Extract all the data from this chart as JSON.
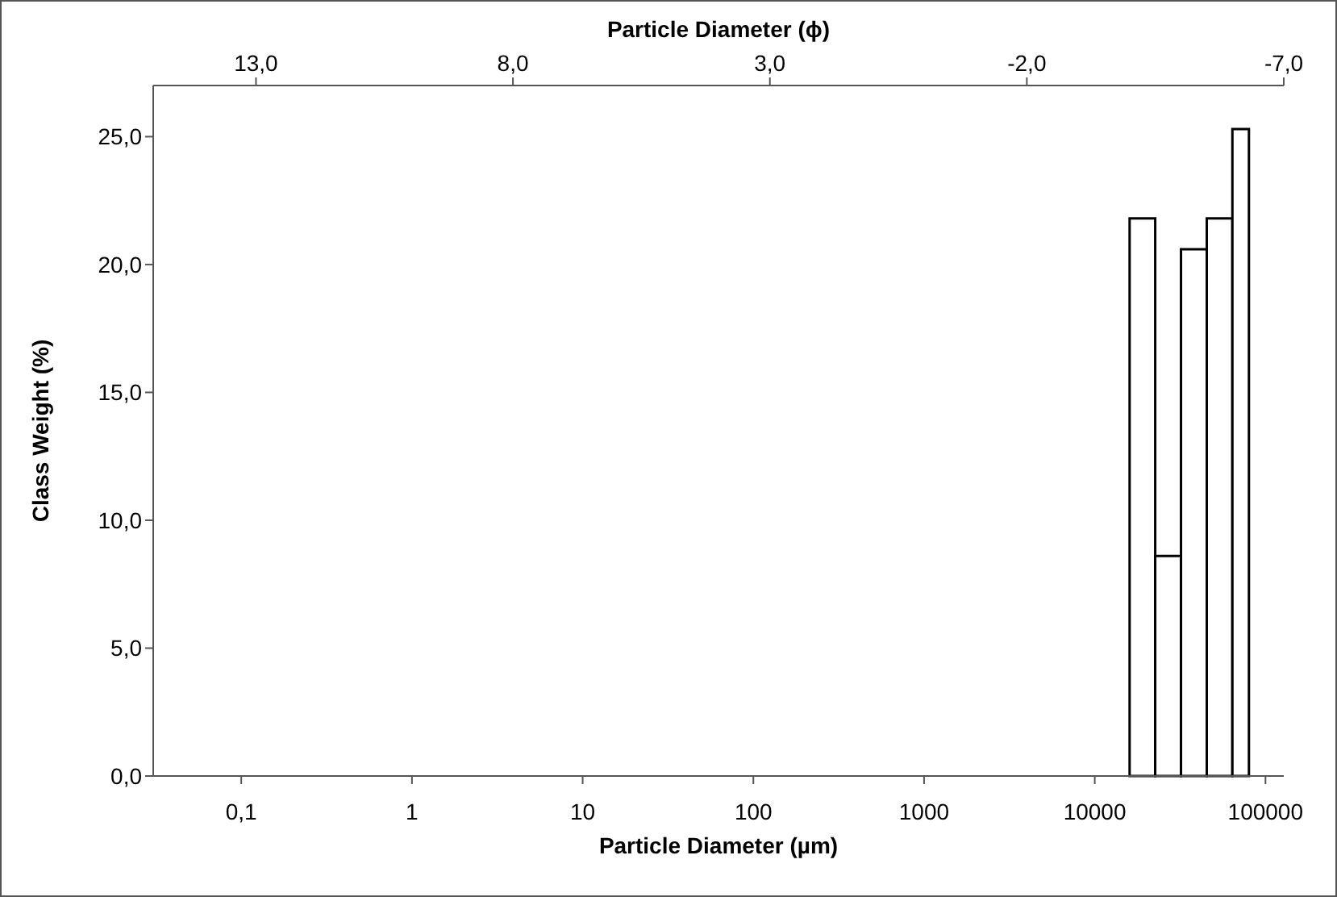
{
  "chart_data": {
    "type": "histogram",
    "xlabel": "Particle Diameter (µm)",
    "ylabel": "Class Weight (%)",
    "x2label": "Particle Diameter (ϕ)",
    "bins": [
      16000,
      22600,
      32000,
      45300,
      64000,
      80000
    ],
    "values": [
      21.8,
      8.6,
      20.6,
      21.8,
      25.3
    ],
    "color": "#ffffff",
    "log": "x",
    "xlim": [
      0.0305,
      128000
    ],
    "xticks": [
      {
        "value": 0.1,
        "label": "0,1"
      },
      1,
      10,
      100,
      1000,
      10000,
      100000
    ],
    "x2lim": [
      15,
      -7
    ],
    "x2ticks": [
      {
        "value": 13,
        "label": "13,0"
      },
      {
        "value": 8,
        "label": "8,0"
      },
      {
        "value": 3,
        "label": "3,0"
      },
      {
        "value": -2,
        "label": "-2,0"
      },
      {
        "value": -7,
        "label": "-7,0"
      }
    ],
    "ylim": [
      0,
      27
    ],
    "yticks": [
      {
        "value": 0,
        "label": "0,0"
      },
      {
        "value": 5,
        "label": "5,0"
      },
      {
        "value": 10,
        "label": "10,0"
      },
      {
        "value": 15,
        "label": "15,0"
      },
      {
        "value": 20,
        "label": "20,0"
      },
      {
        "value": 25,
        "label": "25,0"
      }
    ],
    "grid": false
  }
}
